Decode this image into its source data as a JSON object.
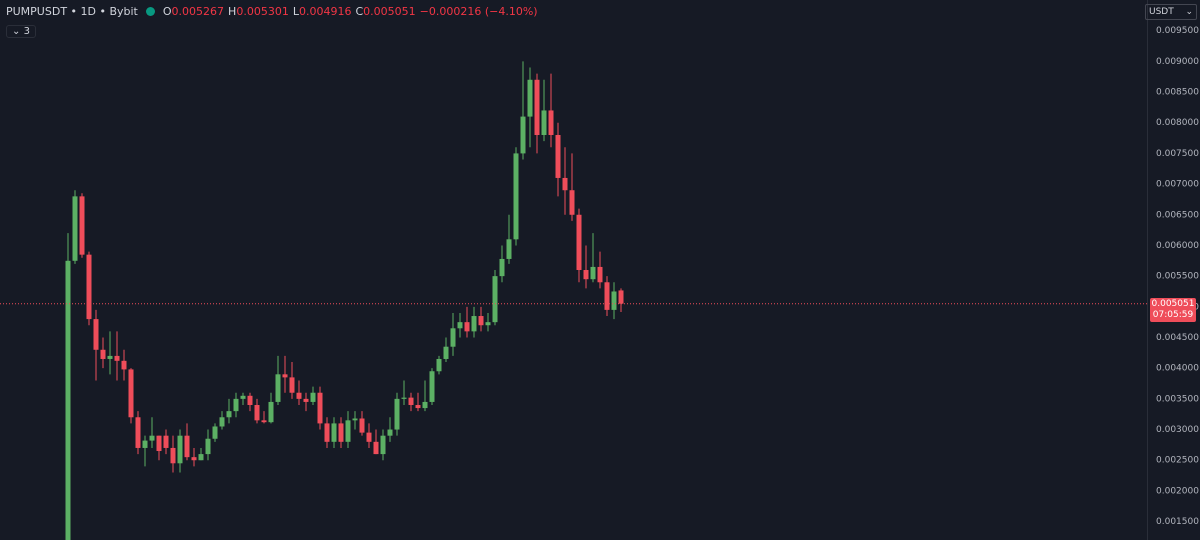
{
  "header": {
    "symbol": "PUMPUSDT • 1D • Bybit",
    "ohlc_letters": [
      "O",
      "H",
      "L",
      "C"
    ],
    "change": "−0.000216 (−4.10%)",
    "indicators": "3",
    "currency": "USDT",
    "countdown": "07:05:59"
  },
  "chart_data": {
    "type": "candlestick",
    "up_color": "#5cb064",
    "down_color": "#ef4d5a",
    "price_line_color": "#ef4d5a",
    "grid": false,
    "ylim": [
      0.0012,
      0.01
    ],
    "yticks": [
      {
        "value": 0.0015,
        "label": "0.001500"
      },
      {
        "value": 0.002,
        "label": "0.002000"
      },
      {
        "value": 0.0025,
        "label": "0.002500"
      },
      {
        "value": 0.003,
        "label": "0.003000"
      },
      {
        "value": 0.0035,
        "label": "0.003500"
      },
      {
        "value": 0.004,
        "label": "0.004000"
      },
      {
        "value": 0.0045,
        "label": "0.004500"
      },
      {
        "value": 0.005,
        "label": "0.005000"
      },
      {
        "value": 0.0055,
        "label": "0.005500"
      },
      {
        "value": 0.006,
        "label": "0.006000"
      },
      {
        "value": 0.0065,
        "label": "0.006500"
      },
      {
        "value": 0.007,
        "label": "0.007000"
      },
      {
        "value": 0.0075,
        "label": "0.007500"
      },
      {
        "value": 0.008,
        "label": "0.008000"
      },
      {
        "value": 0.0085,
        "label": "0.008500"
      },
      {
        "value": 0.009,
        "label": "0.009000"
      },
      {
        "value": 0.0095,
        "label": "0.009500"
      }
    ],
    "open": [
      0.0012,
      0.00575,
      0.0068,
      0.00585,
      0.0048,
      0.0043,
      0.00415,
      0.0042,
      0.00412,
      0.00398,
      0.0032,
      0.0027,
      0.00282,
      0.0029,
      0.0029,
      0.0027,
      0.00245,
      0.0029,
      0.00255,
      0.0025,
      0.0026,
      0.00285,
      0.00305,
      0.0032,
      0.0033,
      0.0035,
      0.00355,
      0.0034,
      0.00315,
      0.00312,
      0.00345,
      0.0039,
      0.00385,
      0.0036,
      0.0035,
      0.00345,
      0.0036,
      0.0031,
      0.0028,
      0.0031,
      0.0028,
      0.00315,
      0.00318,
      0.00295,
      0.0028,
      0.0026,
      0.0029,
      0.003,
      0.0035,
      0.00352,
      0.0034,
      0.00335,
      0.00345,
      0.00395,
      0.00415,
      0.00435,
      0.00465,
      0.00475,
      0.0046,
      0.00485,
      0.0047,
      0.00475,
      0.0055,
      0.00578,
      0.0061,
      0.0075,
      0.0081,
      0.0087,
      0.0078,
      0.0082,
      0.0078,
      0.0071,
      0.0069,
      0.0065,
      0.0056,
      0.00545,
      0.00565,
      0.0054,
      0.00495,
      0.005267
    ],
    "high": [
      0.0062,
      0.0069,
      0.00685,
      0.0059,
      0.00495,
      0.0045,
      0.0046,
      0.0046,
      0.0043,
      0.004,
      0.0033,
      0.0029,
      0.0032,
      0.0029,
      0.003,
      0.0029,
      0.003,
      0.0031,
      0.0027,
      0.0027,
      0.003,
      0.0031,
      0.0033,
      0.0035,
      0.0036,
      0.0036,
      0.0036,
      0.0035,
      0.0033,
      0.0036,
      0.0042,
      0.0042,
      0.0041,
      0.0038,
      0.0036,
      0.0037,
      0.0037,
      0.0032,
      0.0032,
      0.0032,
      0.0033,
      0.0033,
      0.0033,
      0.0031,
      0.003,
      0.003,
      0.0032,
      0.0036,
      0.0038,
      0.0036,
      0.0036,
      0.0038,
      0.004,
      0.0042,
      0.0045,
      0.0049,
      0.0049,
      0.005,
      0.005,
      0.005,
      0.0049,
      0.0056,
      0.006,
      0.0065,
      0.0076,
      0.009,
      0.0089,
      0.0088,
      0.0087,
      0.0088,
      0.008,
      0.0076,
      0.0075,
      0.0066,
      0.006,
      0.0062,
      0.0059,
      0.0055,
      0.0054,
      0.005301
    ],
    "low": [
      0.0012,
      0.0057,
      0.0058,
      0.0047,
      0.0038,
      0.004,
      0.0039,
      0.0038,
      0.0038,
      0.0031,
      0.0026,
      0.0024,
      0.0027,
      0.0025,
      0.0026,
      0.0023,
      0.0023,
      0.0025,
      0.0024,
      0.0025,
      0.0025,
      0.0028,
      0.003,
      0.0031,
      0.0032,
      0.0034,
      0.0033,
      0.0031,
      0.0031,
      0.0031,
      0.0034,
      0.0036,
      0.0035,
      0.0034,
      0.0033,
      0.0034,
      0.003,
      0.0027,
      0.0027,
      0.0027,
      0.0027,
      0.003,
      0.0029,
      0.0027,
      0.0026,
      0.0025,
      0.0028,
      0.0029,
      0.0034,
      0.0033,
      0.0033,
      0.0033,
      0.0034,
      0.0039,
      0.0041,
      0.0042,
      0.0045,
      0.0045,
      0.0045,
      0.0046,
      0.0046,
      0.0047,
      0.0054,
      0.0057,
      0.006,
      0.0074,
      0.0076,
      0.0075,
      0.0077,
      0.0076,
      0.0068,
      0.0065,
      0.0064,
      0.0054,
      0.0053,
      0.0054,
      0.0053,
      0.00485,
      0.0048,
      0.004916
    ],
    "close": [
      0.00575,
      0.0068,
      0.00585,
      0.0048,
      0.0043,
      0.00415,
      0.0042,
      0.00412,
      0.00398,
      0.0032,
      0.0027,
      0.00282,
      0.0029,
      0.00265,
      0.0027,
      0.00245,
      0.0029,
      0.00255,
      0.0025,
      0.0026,
      0.00285,
      0.00305,
      0.0032,
      0.0033,
      0.0035,
      0.00355,
      0.0034,
      0.00315,
      0.00312,
      0.00345,
      0.0039,
      0.00385,
      0.0036,
      0.0035,
      0.00345,
      0.0036,
      0.0031,
      0.0028,
      0.0031,
      0.0028,
      0.00315,
      0.00318,
      0.00295,
      0.0028,
      0.0026,
      0.0029,
      0.003,
      0.0035,
      0.00352,
      0.0034,
      0.00335,
      0.00345,
      0.00395,
      0.00415,
      0.00435,
      0.00465,
      0.00475,
      0.0046,
      0.00485,
      0.0047,
      0.00475,
      0.0055,
      0.00578,
      0.0061,
      0.0075,
      0.0081,
      0.0087,
      0.0078,
      0.0082,
      0.0078,
      0.0071,
      0.0069,
      0.0065,
      0.0056,
      0.00545,
      0.00565,
      0.0054,
      0.00495,
      0.00525,
      0.005051
    ]
  }
}
